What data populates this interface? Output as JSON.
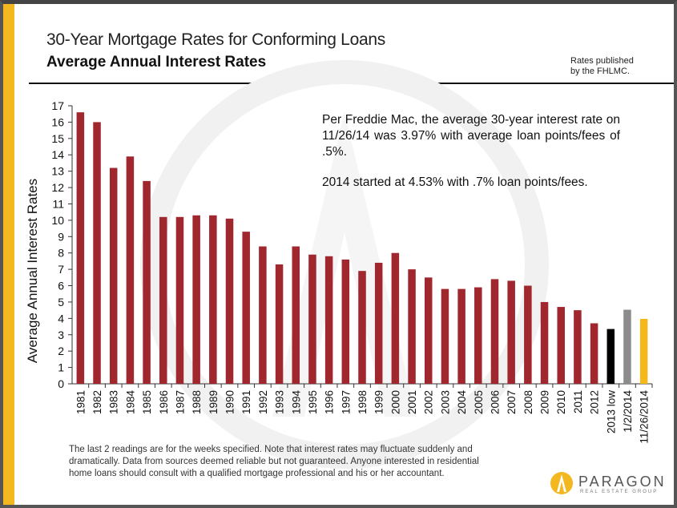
{
  "header": {
    "title": "30-Year Mortgage Rates for Conforming Loans",
    "subtitle": "Average Annual Interest Rates",
    "source_note_line1": "Rates published",
    "source_note_line2": "by  the FHLMC."
  },
  "annotations": {
    "line1": "Per Freddie Mac, the average 30-year interest rate on 11/26/14 was 3.97% with average loan points/fees of .5%.",
    "line2": "2014 started at 4.53% with .7% loan points/fees."
  },
  "footer": {
    "text": "The last 2 readings are for the weeks specified. Note that interest rates may fluctuate suddenly and dramatically. Data from sources deemed reliable but not guaranteed. Anyone interested in residential home loans should consult with a qualified mortgage professional and his or her accountant."
  },
  "logo": {
    "name": "PARAGON",
    "tagline": "REAL ESTATE GROUP"
  },
  "chart_data": {
    "type": "bar",
    "title": "30-Year Mortgage Rates for Conforming Loans",
    "subtitle": "Average Annual Interest Rates",
    "xlabel": "",
    "ylabel": "Average Annual Interest Rates",
    "ylim": [
      0,
      17
    ],
    "yticks": [
      0,
      1,
      2,
      3,
      4,
      5,
      6,
      7,
      8,
      9,
      10,
      11,
      12,
      13,
      14,
      15,
      16,
      17
    ],
    "grid": false,
    "categories": [
      "1981",
      "1982",
      "1983",
      "1984",
      "1985",
      "1986",
      "1987",
      "1988",
      "1989",
      "1990",
      "1991",
      "1992",
      "1993",
      "1994",
      "1995",
      "1996",
      "1997",
      "1998",
      "1999",
      "2000",
      "2001",
      "2002",
      "2003",
      "2004",
      "2005",
      "2006",
      "2007",
      "2008",
      "2009",
      "2010",
      "2011",
      "2012",
      "2013 low",
      "1/2/2014",
      "11/26/2014"
    ],
    "values": [
      16.6,
      16.0,
      13.2,
      13.9,
      12.4,
      10.2,
      10.2,
      10.3,
      10.3,
      10.1,
      9.3,
      8.4,
      7.3,
      8.4,
      7.9,
      7.8,
      7.6,
      6.9,
      7.4,
      8.0,
      7.0,
      6.5,
      5.8,
      5.8,
      5.9,
      6.4,
      6.3,
      6.0,
      5.0,
      4.7,
      4.5,
      3.7,
      3.35,
      4.53,
      3.97
    ],
    "colors": {
      "default": "#a0272e",
      "2013 low": "#000000",
      "1/2/2014": "#8c8c8c",
      "11/26/2014": "#f5b81a"
    }
  }
}
